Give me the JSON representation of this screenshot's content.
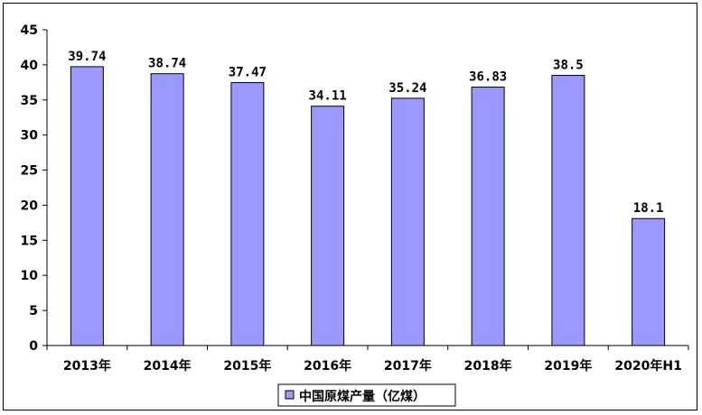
{
  "chart_data": {
    "type": "bar",
    "categories": [
      "2013年",
      "2014年",
      "2015年",
      "2016年",
      "2017年",
      "2018年",
      "2019年",
      "2020年H1"
    ],
    "series": [
      {
        "name": "中国原煤产量（亿煤）",
        "values": [
          39.74,
          38.74,
          37.47,
          34.11,
          35.24,
          36.83,
          38.5,
          18.1
        ]
      }
    ],
    "data_labels": [
      "39.74",
      "38.74",
      "37.47",
      "34.11",
      "35.24",
      "36.83",
      "38.5",
      "18.1"
    ],
    "y_ticks": [
      "0",
      "5",
      "10",
      "15",
      "20",
      "25",
      "30",
      "35",
      "40",
      "45"
    ],
    "ylim": [
      0,
      45
    ],
    "title": "",
    "xlabel": "",
    "ylabel": "",
    "grid": false,
    "legend_position": "bottom-center",
    "colors": {
      "bar_fill": "#9999ff",
      "bar_stroke": "#000000",
      "axis": "#000000"
    }
  }
}
